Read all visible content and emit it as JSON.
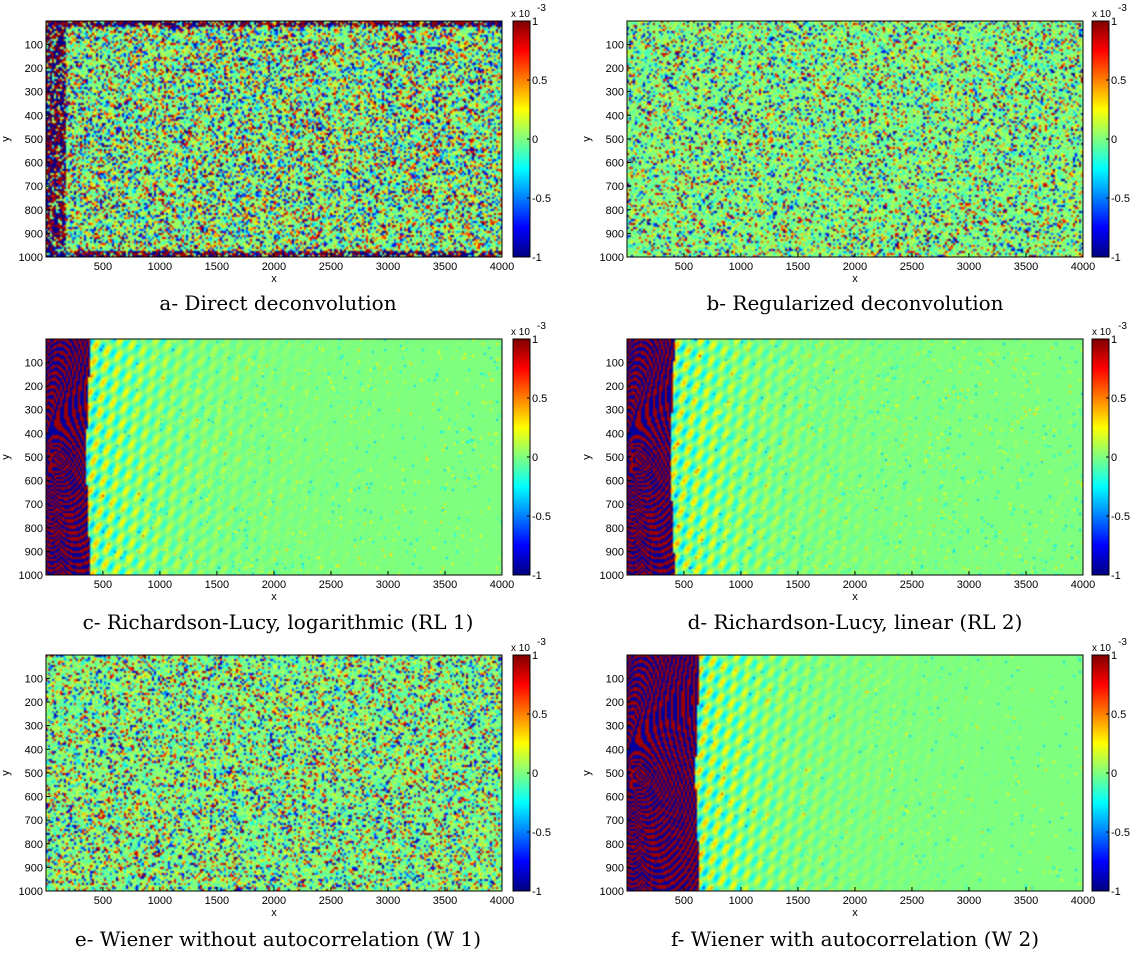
{
  "colormap": {
    "name": "jet",
    "stops": [
      "#00007f",
      "#0000ff",
      "#007fff",
      "#00ffff",
      "#7fff7f",
      "#ffff00",
      "#ff7f00",
      "#ff0000",
      "#7f0000"
    ],
    "background_green": "#7fff7f"
  },
  "chart_data": [
    {
      "type": "heatmap",
      "panel": "a",
      "caption": "a- Direct deconvolution",
      "xlabel": "x",
      "ylabel": "y",
      "xlim": [
        1,
        4000
      ],
      "ylim": [
        1,
        1000
      ],
      "y_reversed": true,
      "x_ticks": [
        "500",
        "1000",
        "1500",
        "2000",
        "2500",
        "3000",
        "3500",
        "4000"
      ],
      "y_ticks": [
        "100",
        "200",
        "300",
        "400",
        "500",
        "600",
        "700",
        "800",
        "900",
        "1000"
      ],
      "colorbar": {
        "range": [
          -1,
          1
        ],
        "ticks": [
          "1",
          "0.5",
          "0",
          "-0.5",
          "-1"
        ],
        "multiplier": "x 10",
        "exponent": "-3"
      },
      "pattern": {
        "kind": "noise",
        "noise_level": 0.55,
        "edge_dark": true
      }
    },
    {
      "type": "heatmap",
      "panel": "b",
      "caption": "b- Regularized deconvolution",
      "xlabel": "x",
      "ylabel": "y",
      "xlim": [
        1,
        4000
      ],
      "ylim": [
        1,
        1000
      ],
      "y_reversed": true,
      "x_ticks": [
        "500",
        "1000",
        "1500",
        "2000",
        "2500",
        "3000",
        "3500",
        "4000"
      ],
      "y_ticks": [
        "100",
        "200",
        "300",
        "400",
        "500",
        "600",
        "700",
        "800",
        "900",
        "1000"
      ],
      "colorbar": {
        "range": [
          -1,
          1
        ],
        "ticks": [
          "1",
          "0.5",
          "0",
          "-0.5",
          "-1"
        ],
        "multiplier": "x 10",
        "exponent": "-3"
      },
      "pattern": {
        "kind": "noise",
        "noise_level": 0.35,
        "edge_dark": false
      }
    },
    {
      "type": "heatmap",
      "panel": "c",
      "caption": "c- Richardson-Lucy, logarithmic (RL 1)",
      "xlabel": "x",
      "ylabel": "y",
      "xlim": [
        1,
        4000
      ],
      "ylim": [
        1,
        1000
      ],
      "y_reversed": true,
      "x_ticks": [
        "500",
        "1000",
        "1500",
        "2000",
        "2500",
        "3000",
        "3500",
        "4000"
      ],
      "y_ticks": [
        "100",
        "200",
        "300",
        "400",
        "500",
        "600",
        "700",
        "800",
        "900",
        "1000"
      ],
      "colorbar": {
        "range": [
          -1,
          1
        ],
        "ticks": [
          "1",
          "0.5",
          "0",
          "-0.5",
          "-1"
        ],
        "multiplier": "x 10",
        "exponent": "-3"
      },
      "pattern": {
        "kind": "fringes",
        "front_x": 350,
        "noise_level": 0.05
      }
    },
    {
      "type": "heatmap",
      "panel": "d",
      "caption": "d- Richardson-Lucy, linear (RL 2)",
      "xlabel": "x",
      "ylabel": "y",
      "xlim": [
        1,
        4000
      ],
      "ylim": [
        1,
        1000
      ],
      "y_reversed": true,
      "x_ticks": [
        "500",
        "1000",
        "1500",
        "2000",
        "2500",
        "3000",
        "3500",
        "4000"
      ],
      "y_ticks": [
        "100",
        "200",
        "300",
        "400",
        "500",
        "600",
        "700",
        "800",
        "900",
        "1000"
      ],
      "colorbar": {
        "range": [
          -1,
          1
        ],
        "ticks": [
          "1",
          "0.5",
          "0",
          "-0.5",
          "-1"
        ],
        "multiplier": "x 10",
        "exponent": "-3"
      },
      "pattern": {
        "kind": "fringes",
        "front_x": 380,
        "noise_level": 0.06
      }
    },
    {
      "type": "heatmap",
      "panel": "e",
      "caption": "e- Wiener without autocorrelation (W 1)",
      "xlabel": "x",
      "ylabel": "y",
      "xlim": [
        1,
        4000
      ],
      "ylim": [
        1,
        1000
      ],
      "y_reversed": true,
      "x_ticks": [
        "500",
        "1000",
        "1500",
        "2000",
        "2500",
        "3000",
        "3500",
        "4000"
      ],
      "y_ticks": [
        "100",
        "200",
        "300",
        "400",
        "500",
        "600",
        "700",
        "800",
        "900",
        "1000"
      ],
      "colorbar": {
        "range": [
          -1,
          1
        ],
        "ticks": [
          "1",
          "0.5",
          "0",
          "-0.5",
          "-1"
        ],
        "multiplier": "x 10",
        "exponent": "-3"
      },
      "pattern": {
        "kind": "noise",
        "noise_level": 0.4,
        "edge_dark": false
      }
    },
    {
      "type": "heatmap",
      "panel": "f",
      "caption": "f- Wiener with autocorrelation (W 2)",
      "xlabel": "x",
      "ylabel": "y",
      "xlim": [
        1,
        4000
      ],
      "ylim": [
        1,
        1000
      ],
      "y_reversed": true,
      "x_ticks": [
        "500",
        "1000",
        "1500",
        "2000",
        "2500",
        "3000",
        "3500",
        "4000"
      ],
      "y_ticks": [
        "100",
        "200",
        "300",
        "400",
        "500",
        "600",
        "700",
        "800",
        "900",
        "1000"
      ],
      "colorbar": {
        "range": [
          -1,
          1
        ],
        "ticks": [
          "1",
          "0.5",
          "0",
          "-0.5",
          "-1"
        ],
        "multiplier": "x 10",
        "exponent": "-3"
      },
      "pattern": {
        "kind": "fringes",
        "front_x": 600,
        "noise_level": 0.03
      }
    }
  ]
}
